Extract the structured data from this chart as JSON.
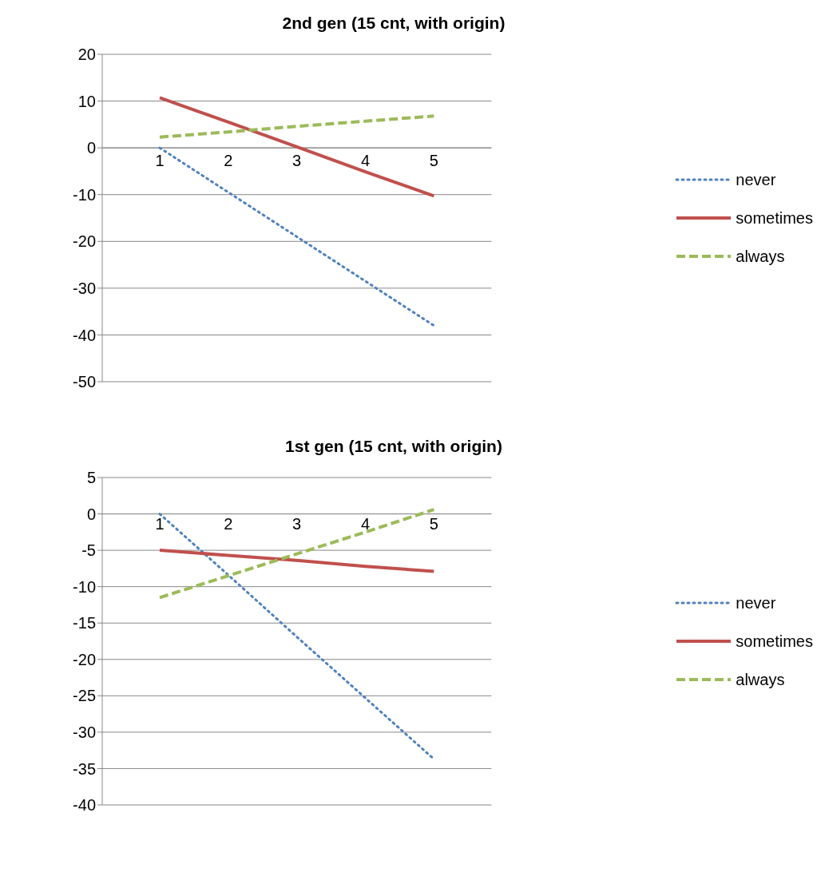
{
  "chart_data": [
    {
      "type": "line",
      "title": "2nd gen (15 cnt, with origin)",
      "categories": [
        "1",
        "2",
        "3",
        "4",
        "5"
      ],
      "series": [
        {
          "name": "never",
          "color": "#4f81bd",
          "line_style": "dotted",
          "values": [
            0,
            -9.5,
            -19,
            -28.5,
            -38
          ]
        },
        {
          "name": "sometimes",
          "color": "#c0504d",
          "line_style": "solid",
          "values": [
            10.7,
            5.5,
            0.2,
            -5.1,
            -10.3
          ]
        },
        {
          "name": "always",
          "color": "#9bbb59",
          "line_style": "dashed",
          "values": [
            2.3,
            3.4,
            4.6,
            5.7,
            6.8
          ]
        }
      ],
      "ylim": [
        -50,
        20
      ],
      "yticks": [
        -50,
        -40,
        -30,
        -20,
        -10,
        0,
        10,
        20
      ],
      "grid": "y",
      "legend": "right",
      "marker": "none"
    },
    {
      "type": "line",
      "title": "1st gen (15 cnt, with origin)",
      "categories": [
        "1",
        "2",
        "3",
        "4",
        "5"
      ],
      "series": [
        {
          "name": "never",
          "color": "#4f81bd",
          "line_style": "dotted",
          "values": [
            0,
            -8.4,
            -16.9,
            -25.3,
            -33.7
          ]
        },
        {
          "name": "sometimes",
          "color": "#c0504d",
          "line_style": "solid",
          "values": [
            -5,
            -5.7,
            -6.4,
            -7.2,
            -7.9
          ]
        },
        {
          "name": "always",
          "color": "#9bbb59",
          "line_style": "dashed",
          "values": [
            -11.5,
            -8.5,
            -5.5,
            -2.5,
            0.6
          ]
        }
      ],
      "ylim": [
        -40,
        5
      ],
      "yticks": [
        -40,
        -35,
        -30,
        -25,
        -20,
        -15,
        -10,
        -5,
        0,
        5
      ],
      "grid": "y",
      "legend": "right",
      "marker": "none"
    }
  ]
}
